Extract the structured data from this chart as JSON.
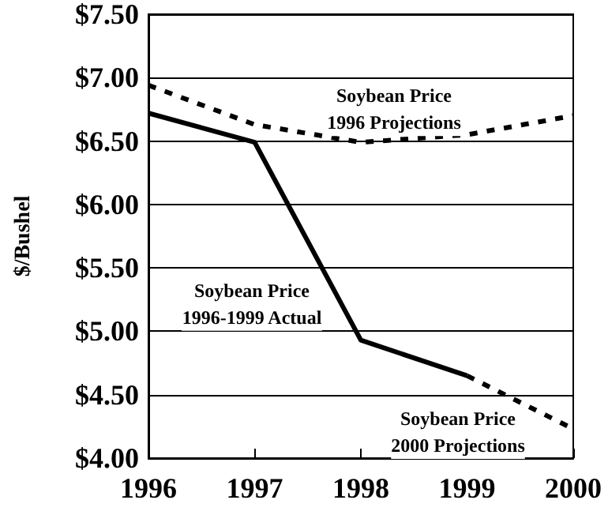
{
  "chart_data": {
    "type": "line",
    "ylabel": "$/Bushel",
    "x": [
      1996,
      1997,
      1998,
      1999,
      2000
    ],
    "xlim": [
      1996,
      2000
    ],
    "xticks": [
      1996,
      1997,
      1998,
      1999,
      2000
    ],
    "ylim": [
      4,
      7.5
    ],
    "yticks": [
      {
        "value": 4,
        "label": "$4.00"
      },
      {
        "value": 4.5,
        "label": "$4.50"
      },
      {
        "value": 5,
        "label": "$5.00"
      },
      {
        "value": 5.5,
        "label": "$5.50"
      },
      {
        "value": 6,
        "label": "$6.00"
      },
      {
        "value": 6.5,
        "label": "$6.50"
      },
      {
        "value": 7,
        "label": "$7.00"
      },
      {
        "value": 7.5,
        "label": "$7.50"
      }
    ],
    "grid": "y",
    "legend": false,
    "marker": "none",
    "series": [
      {
        "name": "Soybean Price\n1996 Projections",
        "color": "#000000",
        "line_style": "dashed",
        "values": [
          6.94,
          6.63,
          6.49,
          6.55,
          6.7
        ]
      },
      {
        "name": "Soybean Price\n1996-1999 Actual",
        "color": "#000000",
        "line_style": "solid",
        "x": [
          1996,
          1997,
          1998,
          1999
        ],
        "values": [
          6.72,
          6.49,
          4.93,
          4.65
        ]
      },
      {
        "name": "Soybean Price\n2000 Projections",
        "color": "#000000",
        "line_style": "dashed",
        "x": [
          1999,
          2000
        ],
        "values": [
          4.65,
          4.23
        ]
      }
    ]
  }
}
